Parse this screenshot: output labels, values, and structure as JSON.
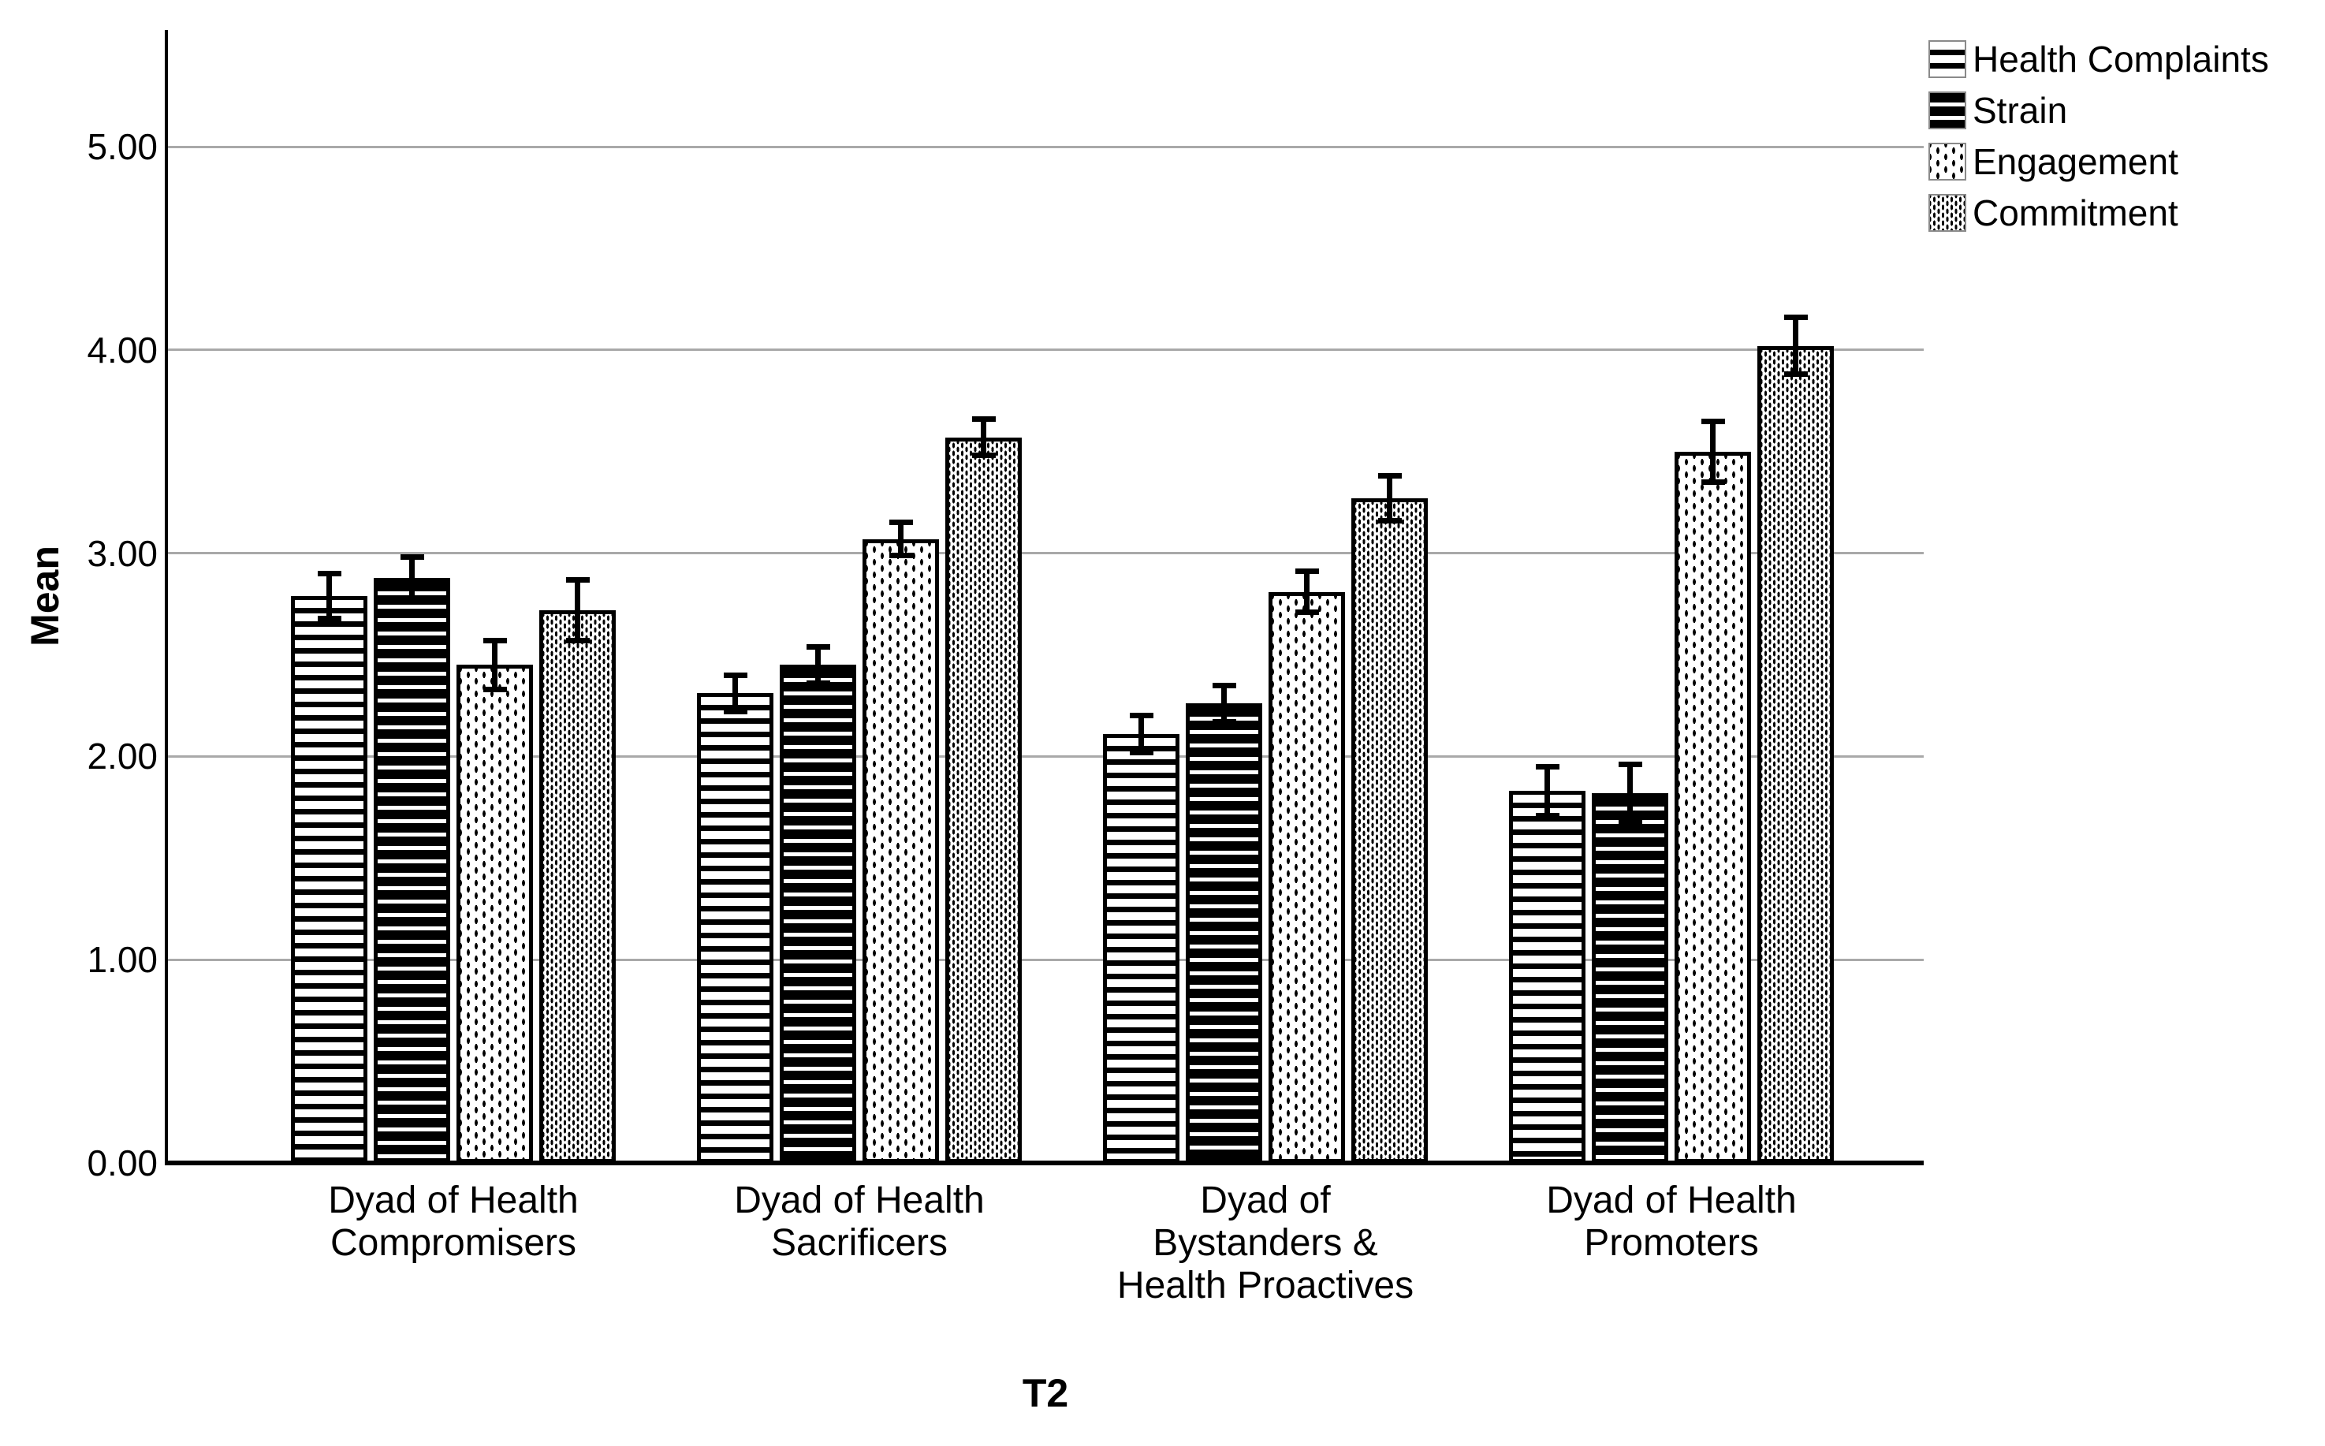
{
  "chart_data": {
    "type": "bar",
    "title": "",
    "xlabel": "T2",
    "ylabel": "Mean",
    "ylim": [
      0,
      5.57
    ],
    "yticks": [
      0,
      1,
      2,
      3,
      4,
      5
    ],
    "ytick_labels": [
      "0.00",
      "1.00",
      "2.00",
      "3.00",
      "4.00",
      "5.00"
    ],
    "grid": "horizontal gridlines at each major tick",
    "legend_position": "top-right",
    "error_bars": true,
    "categories": [
      "Dyad of Health Compromisers",
      "Dyad of Health Sacrificers",
      "Dyad of Bystanders & Health Proactives",
      "Dyad of Health Promoters"
    ],
    "category_label_lines": [
      [
        "Dyad of Health",
        "Compromisers"
      ],
      [
        "Dyad of Health",
        "Sacrificers"
      ],
      [
        "Dyad of",
        "Bystanders &",
        "Health Proactives"
      ],
      [
        "Dyad of Health",
        "Promoters"
      ]
    ],
    "series": [
      {
        "name": "Health Complaints",
        "pattern": "black-horizontal-stripes-on-white",
        "values": [
          2.79,
          2.31,
          2.11,
          1.83
        ],
        "errors": [
          0.11,
          0.09,
          0.09,
          0.12
        ]
      },
      {
        "name": "Strain",
        "pattern": "white-horizontal-stripes-on-black",
        "values": [
          2.88,
          2.45,
          2.26,
          1.82
        ],
        "errors": [
          0.1,
          0.09,
          0.09,
          0.14
        ]
      },
      {
        "name": "Engagement",
        "pattern": "sparse-dots-on-white",
        "values": [
          2.45,
          3.07,
          2.81,
          3.5
        ],
        "errors": [
          0.12,
          0.08,
          0.1,
          0.15
        ]
      },
      {
        "name": "Commitment",
        "pattern": "dense-dots-on-white",
        "values": [
          2.72,
          3.57,
          3.27,
          4.02
        ],
        "errors": [
          0.15,
          0.09,
          0.11,
          0.14
        ]
      }
    ]
  },
  "colors": {
    "background": "#ffffff",
    "bar_fill_light": "#ffffff",
    "bar_fill_dark": "#000000",
    "bar_outline": "#000000",
    "gridline": "#a9a9a9",
    "axis": "#000000",
    "text": "#000000",
    "legend_swatch_border": "#8a8a8a"
  }
}
